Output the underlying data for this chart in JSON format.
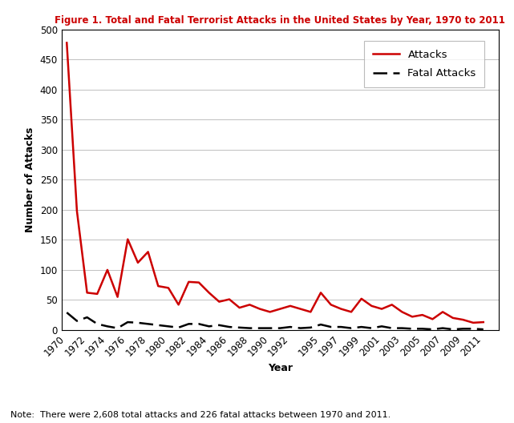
{
  "title": "Figure 1. Total and Fatal Terrorist Attacks in the United States by Year, 1970 to 2011",
  "title_color": "#cc0000",
  "xlabel": "Year",
  "ylabel": "Number of Attacks",
  "note": "Note:  There were 2,608 total attacks and 226 fatal attacks between 1970 and 2011.",
  "years": [
    1970,
    1971,
    1972,
    1973,
    1974,
    1975,
    1976,
    1977,
    1978,
    1979,
    1980,
    1981,
    1982,
    1983,
    1984,
    1985,
    1986,
    1987,
    1988,
    1989,
    1990,
    1991,
    1992,
    1993,
    1994,
    1995,
    1996,
    1997,
    1998,
    1999,
    2000,
    2001,
    2002,
    2003,
    2004,
    2005,
    2006,
    2007,
    2008,
    2009,
    2010,
    2011
  ],
  "attacks": [
    478,
    198,
    62,
    60,
    100,
    55,
    151,
    112,
    130,
    73,
    70,
    42,
    80,
    79,
    62,
    47,
    51,
    37,
    42,
    35,
    30,
    35,
    40,
    35,
    30,
    62,
    42,
    35,
    30,
    52,
    40,
    35,
    42,
    30,
    22,
    25,
    18,
    30,
    20,
    17,
    12,
    13
  ],
  "fatal_attacks": [
    29,
    15,
    21,
    10,
    6,
    3,
    13,
    12,
    10,
    8,
    6,
    4,
    10,
    10,
    6,
    8,
    5,
    4,
    3,
    3,
    3,
    3,
    5,
    3,
    4,
    9,
    5,
    5,
    3,
    5,
    3,
    6,
    3,
    3,
    2,
    2,
    1,
    3,
    1,
    2,
    2,
    1
  ],
  "attacks_color": "#cc0000",
  "fatal_color": "#000000",
  "ylim": [
    0,
    500
  ],
  "yticks": [
    0,
    50,
    100,
    150,
    200,
    250,
    300,
    350,
    400,
    450,
    500
  ],
  "xtick_labels": [
    "1970",
    "1972",
    "1974",
    "1976",
    "1978",
    "1980",
    "1982",
    "1984",
    "1986",
    "1988",
    "1990",
    "1992",
    "1995",
    "1997",
    "1999",
    "2001",
    "2003",
    "2005",
    "2007",
    "2009",
    "2011"
  ],
  "xtick_years": [
    1970,
    1972,
    1974,
    1976,
    1978,
    1980,
    1982,
    1984,
    1986,
    1988,
    1990,
    1992,
    1995,
    1997,
    1999,
    2001,
    2003,
    2005,
    2007,
    2009,
    2011
  ],
  "bg_color": "#ffffff",
  "grid_color": "#c0c0c0"
}
